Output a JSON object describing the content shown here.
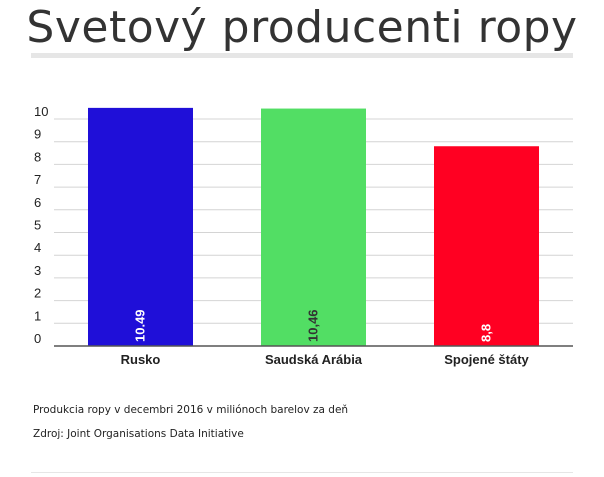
{
  "title": "Svetový producenti ropy",
  "description": "Produkcia ropy v decembri 2016 v miliónoch barelov za deň",
  "source": "Zdroj: Joint Organisations Data Initiative",
  "chart_data": {
    "type": "bar",
    "categories": [
      "Rusko",
      "Saudská Arábia",
      "Spojené štáty"
    ],
    "values": [
      10.49,
      10.46,
      8.8
    ],
    "value_labels": [
      "10.49",
      "10,46",
      "8,8"
    ],
    "colors": [
      "#1f0fd8",
      "#52de64",
      "#ff0022"
    ],
    "value_label_colors": [
      "#ffffff",
      "#333333",
      "#ffffff"
    ],
    "yticks": [
      "0",
      "1",
      "2",
      "3",
      "4",
      "5",
      "6",
      "7",
      "8",
      "9",
      "10"
    ],
    "ylim": [
      0,
      10
    ],
    "grid": true
  }
}
